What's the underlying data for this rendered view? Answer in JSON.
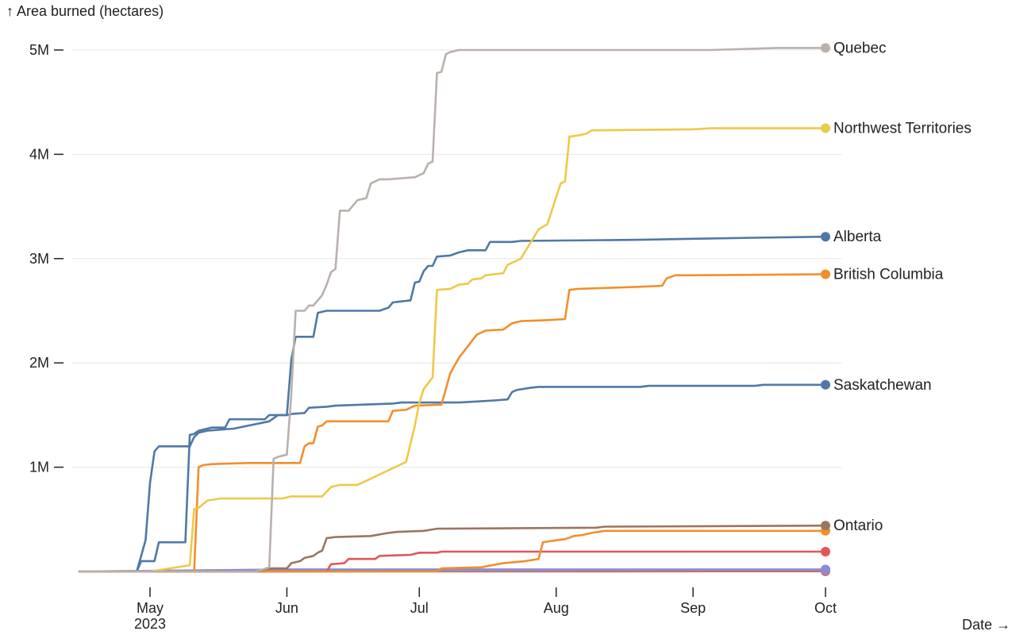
{
  "chart_data": {
    "type": "line",
    "ylabel": "↑ Area burned (hectares)",
    "xlabel": "Date →",
    "y_ticks": [
      {
        "value": 1000000,
        "label": "1M"
      },
      {
        "value": 2000000,
        "label": "2M"
      },
      {
        "value": 3000000,
        "label": "3M"
      },
      {
        "value": 4000000,
        "label": "4M"
      },
      {
        "value": 5000000,
        "label": "5M"
      }
    ],
    "x_ticks": [
      {
        "date": "2023-05-01",
        "label": "May",
        "sublabel": "2023"
      },
      {
        "date": "2023-06-01",
        "label": "Jun",
        "sublabel": ""
      },
      {
        "date": "2023-07-01",
        "label": "Jul",
        "sublabel": ""
      },
      {
        "date": "2023-08-01",
        "label": "Aug",
        "sublabel": ""
      },
      {
        "date": "2023-09-01",
        "label": "Sep",
        "sublabel": ""
      },
      {
        "date": "2023-10-01",
        "label": "Oct",
        "sublabel": ""
      }
    ],
    "xlim": [
      "2023-04-15",
      "2023-10-01"
    ],
    "ylim": [
      0,
      5000000
    ],
    "grid": "horizontal",
    "series": [
      {
        "name": "Quebec",
        "color": "#bab0ac",
        "end_label": true,
        "points": [
          [
            "2023-04-15",
            0
          ],
          [
            "2023-05-25",
            0
          ],
          [
            "2023-05-28",
            40000
          ],
          [
            "2023-05-29",
            1080000
          ],
          [
            "2023-05-30",
            1100000
          ],
          [
            "2023-06-01",
            1120000
          ],
          [
            "2023-06-02",
            1700000
          ],
          [
            "2023-06-03",
            2500000
          ],
          [
            "2023-06-05",
            2500000
          ],
          [
            "2023-06-06",
            2550000
          ],
          [
            "2023-06-07",
            2550000
          ],
          [
            "2023-06-09",
            2650000
          ],
          [
            "2023-06-10",
            2750000
          ],
          [
            "2023-06-11",
            2870000
          ],
          [
            "2023-06-12",
            2900000
          ],
          [
            "2023-06-13",
            3460000
          ],
          [
            "2023-06-15",
            3460000
          ],
          [
            "2023-06-17",
            3560000
          ],
          [
            "2023-06-19",
            3580000
          ],
          [
            "2023-06-20",
            3720000
          ],
          [
            "2023-06-22",
            3760000
          ],
          [
            "2023-06-24",
            3760000
          ],
          [
            "2023-06-30",
            3780000
          ],
          [
            "2023-07-02",
            3820000
          ],
          [
            "2023-07-03",
            3910000
          ],
          [
            "2023-07-04",
            3930000
          ],
          [
            "2023-07-05",
            4780000
          ],
          [
            "2023-07-06",
            4790000
          ],
          [
            "2023-07-07",
            4960000
          ],
          [
            "2023-07-08",
            4980000
          ],
          [
            "2023-07-10",
            5000000
          ],
          [
            "2023-09-05",
            5000000
          ],
          [
            "2023-09-20",
            5020000
          ],
          [
            "2023-10-01",
            5020000
          ]
        ]
      },
      {
        "name": "Northwest Territories",
        "color": "#edc948",
        "end_label": true,
        "points": [
          [
            "2023-04-15",
            0
          ],
          [
            "2023-05-01",
            0
          ],
          [
            "2023-05-10",
            60000
          ],
          [
            "2023-05-11",
            600000
          ],
          [
            "2023-05-12",
            610000
          ],
          [
            "2023-05-14",
            680000
          ],
          [
            "2023-05-17",
            700000
          ],
          [
            "2023-05-31",
            700000
          ],
          [
            "2023-06-02",
            720000
          ],
          [
            "2023-06-09",
            720000
          ],
          [
            "2023-06-11",
            810000
          ],
          [
            "2023-06-13",
            830000
          ],
          [
            "2023-06-17",
            830000
          ],
          [
            "2023-06-28",
            1050000
          ],
          [
            "2023-06-30",
            1400000
          ],
          [
            "2023-07-01",
            1620000
          ],
          [
            "2023-07-02",
            1750000
          ],
          [
            "2023-07-04",
            1860000
          ],
          [
            "2023-07-05",
            2700000
          ],
          [
            "2023-07-08",
            2710000
          ],
          [
            "2023-07-10",
            2750000
          ],
          [
            "2023-07-12",
            2760000
          ],
          [
            "2023-07-13",
            2800000
          ],
          [
            "2023-07-15",
            2810000
          ],
          [
            "2023-07-16",
            2840000
          ],
          [
            "2023-07-20",
            2860000
          ],
          [
            "2023-07-21",
            2940000
          ],
          [
            "2023-07-24",
            3000000
          ],
          [
            "2023-07-28",
            3280000
          ],
          [
            "2023-07-30",
            3330000
          ],
          [
            "2023-08-02",
            3720000
          ],
          [
            "2023-08-03",
            3740000
          ],
          [
            "2023-08-04",
            4170000
          ],
          [
            "2023-08-06",
            4180000
          ],
          [
            "2023-08-08",
            4200000
          ],
          [
            "2023-08-09",
            4230000
          ],
          [
            "2023-09-01",
            4240000
          ],
          [
            "2023-09-05",
            4250000
          ],
          [
            "2023-10-01",
            4250000
          ]
        ]
      },
      {
        "name": "Alberta",
        "color": "#4e79a7",
        "end_label": true,
        "points": [
          [
            "2023-04-15",
            0
          ],
          [
            "2023-04-28",
            0
          ],
          [
            "2023-04-29",
            100000
          ],
          [
            "2023-05-02",
            100000
          ],
          [
            "2023-05-03",
            280000
          ],
          [
            "2023-05-09",
            280000
          ],
          [
            "2023-05-10",
            1310000
          ],
          [
            "2023-05-11",
            1320000
          ],
          [
            "2023-05-12",
            1350000
          ],
          [
            "2023-05-15",
            1380000
          ],
          [
            "2023-05-18",
            1380000
          ],
          [
            "2023-05-19",
            1460000
          ],
          [
            "2023-05-27",
            1460000
          ],
          [
            "2023-05-28",
            1500000
          ],
          [
            "2023-06-01",
            1500000
          ],
          [
            "2023-06-02",
            2030000
          ],
          [
            "2023-06-03",
            2250000
          ],
          [
            "2023-06-07",
            2250000
          ],
          [
            "2023-06-08",
            2480000
          ],
          [
            "2023-06-10",
            2500000
          ],
          [
            "2023-06-22",
            2500000
          ],
          [
            "2023-06-24",
            2530000
          ],
          [
            "2023-06-25",
            2580000
          ],
          [
            "2023-06-29",
            2600000
          ],
          [
            "2023-06-30",
            2770000
          ],
          [
            "2023-07-01",
            2780000
          ],
          [
            "2023-07-02",
            2880000
          ],
          [
            "2023-07-03",
            2930000
          ],
          [
            "2023-07-04",
            2930000
          ],
          [
            "2023-07-05",
            3020000
          ],
          [
            "2023-07-08",
            3030000
          ],
          [
            "2023-07-10",
            3060000
          ],
          [
            "2023-07-12",
            3080000
          ],
          [
            "2023-07-16",
            3080000
          ],
          [
            "2023-07-17",
            3160000
          ],
          [
            "2023-07-22",
            3160000
          ],
          [
            "2023-07-24",
            3170000
          ],
          [
            "2023-08-20",
            3180000
          ],
          [
            "2023-09-01",
            3190000
          ],
          [
            "2023-09-15",
            3200000
          ],
          [
            "2023-10-01",
            3210000
          ]
        ]
      },
      {
        "name": "British Columbia",
        "color": "#f28e2b",
        "end_label": true,
        "points": [
          [
            "2023-04-15",
            0
          ],
          [
            "2023-05-11",
            0
          ],
          [
            "2023-05-12",
            1000000
          ],
          [
            "2023-05-13",
            1020000
          ],
          [
            "2023-05-15",
            1030000
          ],
          [
            "2023-05-23",
            1040000
          ],
          [
            "2023-06-04",
            1040000
          ],
          [
            "2023-06-05",
            1200000
          ],
          [
            "2023-06-06",
            1230000
          ],
          [
            "2023-06-07",
            1230000
          ],
          [
            "2023-06-08",
            1390000
          ],
          [
            "2023-06-09",
            1400000
          ],
          [
            "2023-06-10",
            1440000
          ],
          [
            "2023-06-24",
            1440000
          ],
          [
            "2023-06-25",
            1540000
          ],
          [
            "2023-06-28",
            1550000
          ],
          [
            "2023-06-30",
            1590000
          ],
          [
            "2023-07-06",
            1600000
          ],
          [
            "2023-07-07",
            1750000
          ],
          [
            "2023-07-08",
            1900000
          ],
          [
            "2023-07-10",
            2050000
          ],
          [
            "2023-07-12",
            2160000
          ],
          [
            "2023-07-14",
            2270000
          ],
          [
            "2023-07-16",
            2310000
          ],
          [
            "2023-07-20",
            2320000
          ],
          [
            "2023-07-22",
            2380000
          ],
          [
            "2023-07-24",
            2400000
          ],
          [
            "2023-07-30",
            2410000
          ],
          [
            "2023-08-03",
            2420000
          ],
          [
            "2023-08-04",
            2700000
          ],
          [
            "2023-08-06",
            2710000
          ],
          [
            "2023-08-20",
            2730000
          ],
          [
            "2023-08-25",
            2740000
          ],
          [
            "2023-08-26",
            2810000
          ],
          [
            "2023-08-28",
            2840000
          ],
          [
            "2023-09-01",
            2840000
          ],
          [
            "2023-10-01",
            2850000
          ]
        ]
      },
      {
        "name": "Saskatchewan",
        "color": "#4e79a7",
        "end_label": true,
        "points": [
          [
            "2023-04-15",
            0
          ],
          [
            "2023-04-28",
            0
          ],
          [
            "2023-04-30",
            300000
          ],
          [
            "2023-05-01",
            850000
          ],
          [
            "2023-05-02",
            1150000
          ],
          [
            "2023-05-03",
            1200000
          ],
          [
            "2023-05-10",
            1200000
          ],
          [
            "2023-05-11",
            1290000
          ],
          [
            "2023-05-12",
            1330000
          ],
          [
            "2023-05-14",
            1350000
          ],
          [
            "2023-05-20",
            1370000
          ],
          [
            "2023-05-28",
            1440000
          ],
          [
            "2023-05-30",
            1500000
          ],
          [
            "2023-06-01",
            1500000
          ],
          [
            "2023-06-02",
            1510000
          ],
          [
            "2023-06-05",
            1520000
          ],
          [
            "2023-06-06",
            1570000
          ],
          [
            "2023-06-10",
            1580000
          ],
          [
            "2023-06-12",
            1590000
          ],
          [
            "2023-06-18",
            1600000
          ],
          [
            "2023-06-25",
            1610000
          ],
          [
            "2023-06-27",
            1620000
          ],
          [
            "2023-07-10",
            1620000
          ],
          [
            "2023-07-14",
            1630000
          ],
          [
            "2023-07-18",
            1640000
          ],
          [
            "2023-07-21",
            1650000
          ],
          [
            "2023-07-22",
            1720000
          ],
          [
            "2023-07-23",
            1740000
          ],
          [
            "2023-07-26",
            1760000
          ],
          [
            "2023-07-28",
            1770000
          ],
          [
            "2023-08-20",
            1770000
          ],
          [
            "2023-08-22",
            1780000
          ],
          [
            "2023-09-15",
            1780000
          ],
          [
            "2023-09-17",
            1790000
          ],
          [
            "2023-10-01",
            1790000
          ]
        ]
      },
      {
        "name": "Ontario",
        "color": "#9c755f",
        "end_label": true,
        "points": [
          [
            "2023-04-15",
            0
          ],
          [
            "2023-05-25",
            0
          ],
          [
            "2023-05-28",
            30000
          ],
          [
            "2023-06-01",
            30000
          ],
          [
            "2023-06-02",
            80000
          ],
          [
            "2023-06-04",
            100000
          ],
          [
            "2023-06-05",
            130000
          ],
          [
            "2023-06-07",
            150000
          ],
          [
            "2023-06-08",
            180000
          ],
          [
            "2023-06-09",
            200000
          ],
          [
            "2023-06-10",
            320000
          ],
          [
            "2023-06-12",
            330000
          ],
          [
            "2023-06-20",
            340000
          ],
          [
            "2023-06-24",
            370000
          ],
          [
            "2023-06-26",
            380000
          ],
          [
            "2023-07-02",
            390000
          ],
          [
            "2023-07-05",
            410000
          ],
          [
            "2023-08-10",
            420000
          ],
          [
            "2023-08-12",
            430000
          ],
          [
            "2023-10-01",
            440000
          ]
        ]
      },
      {
        "name": "",
        "color": "#f28e2b",
        "end_label": false,
        "points": [
          [
            "2023-04-15",
            0
          ],
          [
            "2023-07-05",
            0
          ],
          [
            "2023-07-06",
            30000
          ],
          [
            "2023-07-15",
            40000
          ],
          [
            "2023-07-20",
            80000
          ],
          [
            "2023-07-25",
            100000
          ],
          [
            "2023-07-28",
            120000
          ],
          [
            "2023-07-29",
            280000
          ],
          [
            "2023-08-01",
            300000
          ],
          [
            "2023-08-03",
            310000
          ],
          [
            "2023-08-05",
            340000
          ],
          [
            "2023-08-07",
            350000
          ],
          [
            "2023-08-09",
            370000
          ],
          [
            "2023-08-12",
            390000
          ],
          [
            "2023-09-01",
            390000
          ],
          [
            "2023-10-01",
            390000
          ]
        ]
      },
      {
        "name": "",
        "color": "#e15759",
        "end_label": false,
        "points": [
          [
            "2023-04-15",
            0
          ],
          [
            "2023-06-10",
            0
          ],
          [
            "2023-06-11",
            70000
          ],
          [
            "2023-06-14",
            80000
          ],
          [
            "2023-06-15",
            120000
          ],
          [
            "2023-06-21",
            120000
          ],
          [
            "2023-06-22",
            150000
          ],
          [
            "2023-06-29",
            160000
          ],
          [
            "2023-07-01",
            180000
          ],
          [
            "2023-07-05",
            180000
          ],
          [
            "2023-07-06",
            190000
          ],
          [
            "2023-10-01",
            190000
          ]
        ]
      },
      {
        "name": "",
        "color": "#8a8ad6",
        "end_label": false,
        "points": [
          [
            "2023-04-15",
            0
          ],
          [
            "2023-05-10",
            10000
          ],
          [
            "2023-06-01",
            20000
          ],
          [
            "2023-10-01",
            20000
          ]
        ]
      },
      {
        "name": "",
        "color": "#76b7b2",
        "end_label": false,
        "points": [
          [
            "2023-04-15",
            0
          ],
          [
            "2023-05-15",
            10000
          ],
          [
            "2023-10-01",
            15000
          ]
        ]
      },
      {
        "name": "",
        "color": "#e15759",
        "end_label": false,
        "points": [
          [
            "2023-04-15",
            0
          ],
          [
            "2023-10-01",
            2000
          ]
        ]
      }
    ]
  }
}
